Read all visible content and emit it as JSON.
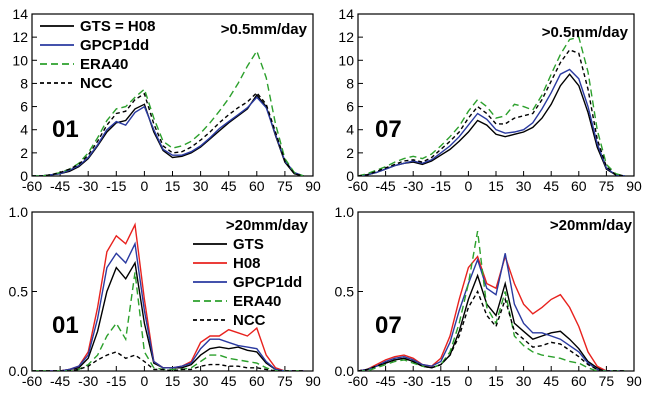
{
  "chart_data": [
    {
      "type": "line",
      "panel": "01",
      "annotation": ">0.5mm/day",
      "xlim": [
        -60,
        90
      ],
      "ylim": [
        0,
        14
      ],
      "xticks": [
        -60,
        -45,
        -30,
        -15,
        0,
        15,
        30,
        45,
        60,
        75,
        90
      ],
      "yticks": [
        0,
        2,
        4,
        6,
        8,
        10,
        12,
        14
      ],
      "xtick_labels": [
        "-60",
        "-45",
        "-30",
        "-15",
        "0",
        "15",
        "30",
        "45",
        "60",
        "75",
        "90"
      ],
      "ytick_labels": [
        "0",
        "2",
        "4",
        "6",
        "8",
        "10",
        "12",
        "14"
      ],
      "legend_position": "top-left",
      "x": [
        -60,
        -55,
        -50,
        -45,
        -40,
        -35,
        -30,
        -25,
        -20,
        -15,
        -10,
        -5,
        0,
        5,
        10,
        15,
        20,
        25,
        30,
        35,
        40,
        45,
        50,
        55,
        60,
        65,
        70,
        75,
        80,
        85
      ],
      "series": [
        {
          "name": "GTS = H08",
          "color": "#000000",
          "dash": "solid",
          "values": [
            0,
            0,
            0.1,
            0.2,
            0.4,
            0.8,
            1.5,
            2.6,
            3.8,
            4.6,
            4.8,
            5.8,
            6.2,
            3.8,
            2.2,
            1.6,
            1.7,
            2.0,
            2.5,
            3.2,
            3.9,
            4.6,
            5.2,
            5.8,
            7.0,
            6.0,
            3.5,
            1.2,
            0.2,
            0
          ]
        },
        {
          "name": "GPCP1dd",
          "color": "#2a3aa0",
          "dash": "solid",
          "values": [
            0,
            0,
            0.1,
            0.2,
            0.5,
            0.9,
            1.6,
            2.7,
            4.0,
            4.7,
            4.4,
            5.5,
            6.0,
            4.0,
            2.3,
            1.8,
            1.8,
            2.1,
            2.6,
            3.3,
            4.1,
            4.7,
            5.3,
            5.9,
            6.8,
            5.9,
            3.6,
            1.3,
            0.3,
            0
          ]
        },
        {
          "name": "ERA40",
          "color": "#2ca02c",
          "dash": "long",
          "values": [
            0,
            0,
            0.1,
            0.3,
            0.6,
            1.1,
            2.0,
            3.3,
            4.8,
            5.8,
            6.0,
            6.8,
            7.5,
            5.0,
            3.0,
            2.4,
            2.6,
            3.0,
            3.7,
            4.6,
            5.6,
            6.7,
            8.0,
            9.5,
            10.8,
            8.5,
            4.5,
            1.5,
            0.3,
            0
          ]
        },
        {
          "name": "NCC",
          "color": "#000000",
          "dash": "short",
          "values": [
            0,
            0,
            0.1,
            0.3,
            0.6,
            1.0,
            1.8,
            3.0,
            4.4,
            5.4,
            5.6,
            6.6,
            7.1,
            4.5,
            2.6,
            2.0,
            2.1,
            2.5,
            3.1,
            3.8,
            4.6,
            5.3,
            5.9,
            6.4,
            7.2,
            6.2,
            3.8,
            1.3,
            0.2,
            0
          ]
        }
      ]
    },
    {
      "type": "line",
      "panel": "07",
      "annotation": ">0.5mm/day",
      "xlim": [
        -60,
        90
      ],
      "ylim": [
        0,
        14
      ],
      "xticks": [
        -60,
        -45,
        -30,
        -15,
        0,
        15,
        30,
        45,
        60,
        75,
        90
      ],
      "yticks": [
        0,
        2,
        4,
        6,
        8,
        10,
        12,
        14
      ],
      "xtick_labels": [
        "-60",
        "-45",
        "-30",
        "-15",
        "0",
        "15",
        "30",
        "45",
        "60",
        "75",
        "90"
      ],
      "ytick_labels": [
        "0",
        "2",
        "4",
        "6",
        "8",
        "10",
        "12",
        "14"
      ],
      "x": [
        -60,
        -55,
        -50,
        -45,
        -40,
        -35,
        -30,
        -25,
        -20,
        -15,
        -10,
        -5,
        0,
        5,
        10,
        15,
        20,
        25,
        30,
        35,
        40,
        45,
        50,
        55,
        60,
        65,
        70,
        75,
        80,
        85
      ],
      "series": [
        {
          "name": "GTS = H08",
          "color": "#000000",
          "dash": "solid",
          "values": [
            0,
            0.1,
            0.3,
            0.6,
            0.9,
            1.1,
            1.2,
            1.0,
            1.3,
            1.8,
            2.3,
            3.0,
            3.8,
            4.8,
            4.4,
            3.6,
            3.4,
            3.6,
            3.8,
            4.2,
            5.0,
            6.2,
            7.8,
            8.8,
            7.8,
            5.5,
            2.5,
            0.6,
            0.1,
            0
          ]
        },
        {
          "name": "GPCP1dd",
          "color": "#2a3aa0",
          "dash": "solid",
          "values": [
            0,
            0.1,
            0.3,
            0.6,
            0.9,
            1.1,
            1.3,
            1.1,
            1.4,
            2.0,
            2.6,
            3.4,
            4.4,
            5.4,
            4.9,
            4.0,
            3.7,
            3.8,
            4.0,
            4.6,
            5.8,
            7.2,
            8.8,
            9.2,
            8.4,
            6.0,
            2.8,
            0.7,
            0.1,
            0
          ]
        },
        {
          "name": "ERA40",
          "color": "#2ca02c",
          "dash": "long",
          "values": [
            0,
            0.2,
            0.5,
            0.8,
            1.2,
            1.5,
            1.7,
            1.5,
            1.9,
            2.6,
            3.4,
            4.3,
            5.6,
            6.6,
            6.0,
            5.0,
            5.2,
            6.2,
            6.0,
            5.7,
            7.0,
            8.8,
            10.5,
            11.8,
            12.0,
            9.0,
            4.0,
            1.0,
            0.2,
            0
          ]
        },
        {
          "name": "NCC",
          "color": "#000000",
          "dash": "short",
          "values": [
            0,
            0.1,
            0.4,
            0.7,
            1.0,
            1.3,
            1.4,
            1.2,
            1.6,
            2.3,
            3.0,
            3.8,
            5.0,
            6.0,
            5.4,
            4.5,
            4.5,
            5.0,
            5.2,
            5.4,
            6.6,
            8.2,
            9.8,
            10.9,
            10.6,
            7.5,
            3.2,
            0.8,
            0.1,
            0
          ]
        }
      ]
    },
    {
      "type": "line",
      "panel": "01",
      "annotation": ">20mm/day",
      "xlim": [
        -60,
        90
      ],
      "ylim": [
        0,
        1.0
      ],
      "xticks": [
        -60,
        -45,
        -30,
        -15,
        0,
        15,
        30,
        45,
        60,
        75,
        90
      ],
      "yticks": [
        0,
        0.5,
        1.0
      ],
      "xtick_labels": [
        "-60",
        "-45",
        "-30",
        "-15",
        "0",
        "15",
        "30",
        "45",
        "60",
        "75",
        "90"
      ],
      "ytick_labels": [
        "0.0",
        "0.5",
        "1.0"
      ],
      "legend_position": "top-center",
      "x": [
        -60,
        -55,
        -50,
        -45,
        -40,
        -35,
        -30,
        -25,
        -20,
        -15,
        -10,
        -5,
        0,
        5,
        10,
        15,
        20,
        25,
        30,
        35,
        40,
        45,
        50,
        55,
        60,
        65,
        70,
        75,
        80,
        85
      ],
      "series": [
        {
          "name": "GTS",
          "color": "#000000",
          "dash": "solid",
          "values": [
            0,
            0,
            0,
            0,
            0.01,
            0.02,
            0.08,
            0.25,
            0.5,
            0.65,
            0.58,
            0.68,
            0.3,
            0.05,
            0.02,
            0.02,
            0.02,
            0.04,
            0.1,
            0.14,
            0.15,
            0.14,
            0.15,
            0.13,
            0.12,
            0.05,
            0.01,
            0,
            0,
            0
          ]
        },
        {
          "name": "H08",
          "color": "#e8221e",
          "dash": "solid",
          "values": [
            0,
            0,
            0,
            0,
            0.01,
            0.03,
            0.12,
            0.4,
            0.75,
            0.85,
            0.8,
            0.92,
            0.45,
            0.06,
            0.02,
            0.02,
            0.03,
            0.06,
            0.18,
            0.22,
            0.22,
            0.26,
            0.24,
            0.22,
            0.27,
            0.1,
            0.02,
            0,
            0,
            0
          ]
        },
        {
          "name": "GPCP1dd",
          "color": "#2a3aa0",
          "dash": "solid",
          "values": [
            0,
            0,
            0,
            0,
            0.01,
            0.03,
            0.1,
            0.33,
            0.65,
            0.74,
            0.68,
            0.8,
            0.38,
            0.06,
            0.02,
            0.02,
            0.03,
            0.05,
            0.14,
            0.2,
            0.2,
            0.18,
            0.16,
            0.15,
            0.14,
            0.06,
            0.01,
            0,
            0,
            0
          ]
        },
        {
          "name": "ERA40",
          "color": "#2ca02c",
          "dash": "long",
          "values": [
            0,
            0,
            0,
            0,
            0,
            0.01,
            0.04,
            0.1,
            0.22,
            0.3,
            0.2,
            0.62,
            0.12,
            0.02,
            0.01,
            0.01,
            0.01,
            0.02,
            0.06,
            0.1,
            0.1,
            0.08,
            0.07,
            0.06,
            0.05,
            0.02,
            0,
            0,
            0,
            0
          ]
        },
        {
          "name": "NCC",
          "color": "#000000",
          "dash": "short",
          "values": [
            0,
            0,
            0,
            0,
            0,
            0.01,
            0.03,
            0.07,
            0.1,
            0.12,
            0.08,
            0.1,
            0.06,
            0.01,
            0.01,
            0,
            0.01,
            0.01,
            0.03,
            0.04,
            0.04,
            0.03,
            0.03,
            0.02,
            0.02,
            0.01,
            0,
            0,
            0,
            0
          ]
        }
      ]
    },
    {
      "type": "line",
      "panel": "07",
      "annotation": ">20mm/day",
      "xlim": [
        -60,
        90
      ],
      "ylim": [
        0,
        1.0
      ],
      "xticks": [
        -60,
        -45,
        -30,
        -15,
        0,
        15,
        30,
        45,
        60,
        75,
        90
      ],
      "yticks": [
        0,
        0.5,
        1.0
      ],
      "xtick_labels": [
        "-60",
        "-45",
        "-30",
        "-15",
        "0",
        "15",
        "30",
        "45",
        "60",
        "75",
        "90"
      ],
      "ytick_labels": [
        "0.0",
        "0.5",
        "1.0"
      ],
      "x": [
        -60,
        -55,
        -50,
        -45,
        -40,
        -35,
        -30,
        -25,
        -20,
        -15,
        -10,
        -5,
        0,
        5,
        10,
        15,
        20,
        25,
        30,
        35,
        40,
        45,
        50,
        55,
        60,
        65,
        70,
        75,
        80,
        85
      ],
      "series": [
        {
          "name": "GTS",
          "color": "#000000",
          "dash": "solid",
          "values": [
            0,
            0.01,
            0.03,
            0.05,
            0.07,
            0.08,
            0.06,
            0.03,
            0.02,
            0.04,
            0.1,
            0.25,
            0.45,
            0.6,
            0.42,
            0.35,
            0.55,
            0.3,
            0.25,
            0.2,
            0.22,
            0.24,
            0.25,
            0.2,
            0.14,
            0.06,
            0.02,
            0,
            0,
            0
          ]
        },
        {
          "name": "H08",
          "color": "#e8221e",
          "dash": "solid",
          "values": [
            0,
            0.01,
            0.04,
            0.07,
            0.09,
            0.1,
            0.08,
            0.04,
            0.03,
            0.08,
            0.22,
            0.45,
            0.65,
            0.72,
            0.55,
            0.52,
            0.72,
            0.55,
            0.42,
            0.36,
            0.4,
            0.45,
            0.48,
            0.4,
            0.28,
            0.12,
            0.03,
            0,
            0,
            0
          ]
        },
        {
          "name": "GPCP1dd",
          "color": "#2a3aa0",
          "dash": "solid",
          "values": [
            0,
            0.01,
            0.03,
            0.06,
            0.08,
            0.09,
            0.07,
            0.04,
            0.03,
            0.06,
            0.18,
            0.38,
            0.55,
            0.7,
            0.52,
            0.48,
            0.74,
            0.42,
            0.3,
            0.24,
            0.24,
            0.22,
            0.2,
            0.16,
            0.12,
            0.05,
            0.01,
            0,
            0,
            0
          ]
        },
        {
          "name": "ERA40",
          "color": "#2ca02c",
          "dash": "long",
          "values": [
            0,
            0,
            0.02,
            0.04,
            0.06,
            0.07,
            0.05,
            0.03,
            0.02,
            0.04,
            0.12,
            0.3,
            0.55,
            0.88,
            0.4,
            0.3,
            0.5,
            0.22,
            0.16,
            0.12,
            0.1,
            0.09,
            0.08,
            0.06,
            0.05,
            0.02,
            0,
            0,
            0,
            0
          ]
        },
        {
          "name": "NCC",
          "color": "#000000",
          "dash": "short",
          "values": [
            0,
            0.01,
            0.03,
            0.05,
            0.07,
            0.08,
            0.06,
            0.03,
            0.02,
            0.04,
            0.1,
            0.22,
            0.4,
            0.5,
            0.35,
            0.28,
            0.45,
            0.25,
            0.2,
            0.15,
            0.16,
            0.18,
            0.17,
            0.13,
            0.09,
            0.04,
            0.01,
            0,
            0,
            0
          ]
        }
      ]
    }
  ]
}
